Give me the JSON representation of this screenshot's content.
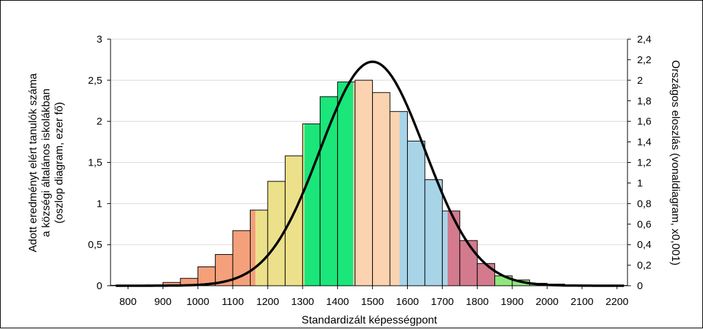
{
  "chart_data": {
    "type": "bar",
    "xlabel": "Standardizált képességpont",
    "ylabel_lines": [
      "Adott eredményt elért tanulók száma",
      "a községi általános iskolákban",
      "(oszlop diagram, ezer fő)"
    ],
    "y2label": "Országos eloszlás (vonaldiagram, x0,001)",
    "xlim": [
      750,
      2230
    ],
    "ylim": [
      0,
      3
    ],
    "y2lim": [
      0,
      2.4
    ],
    "x_ticks": [
      "800",
      "900",
      "1000",
      "1100",
      "1200",
      "1300",
      "1400",
      "1500",
      "1600",
      "1700",
      "1800",
      "1900",
      "2000",
      "2100",
      "2200"
    ],
    "x_tick_values": [
      800,
      900,
      1000,
      1100,
      1200,
      1300,
      1400,
      1500,
      1600,
      1700,
      1800,
      1900,
      2000,
      2100,
      2200
    ],
    "y_ticks": [
      "0",
      "0,5",
      "1",
      "1,5",
      "2",
      "2,5",
      "3"
    ],
    "y_tick_values": [
      0,
      0.5,
      1,
      1.5,
      2,
      2.5,
      3
    ],
    "y2_ticks": [
      "0",
      "0,2",
      "0,4",
      "0,6",
      "0,8",
      "1",
      "1,2",
      "1,4",
      "1,6",
      "1,8",
      "2",
      "2,2",
      "2,4"
    ],
    "y2_tick_values": [
      0,
      0.2,
      0.4,
      0.6,
      0.8,
      1,
      1.2,
      1.4,
      1.6,
      1.8,
      2,
      2.2,
      2.4
    ],
    "grid": true,
    "bar_width": 50,
    "bars": [
      {
        "x": 775,
        "value": 0.005,
        "color": "#f4a07a"
      },
      {
        "x": 825,
        "value": 0.005,
        "color": "#f4a07a"
      },
      {
        "x": 875,
        "value": 0.01,
        "color": "#f4a07a"
      },
      {
        "x": 925,
        "value": 0.04,
        "color": "#f4a07a"
      },
      {
        "x": 975,
        "value": 0.09,
        "color": "#f4a07a"
      },
      {
        "x": 1025,
        "value": 0.23,
        "color": "#f4a07a"
      },
      {
        "x": 1075,
        "value": 0.38,
        "color": "#f4a07a"
      },
      {
        "x": 1125,
        "value": 0.67,
        "color": "#f4a07a"
      },
      {
        "x": 1175,
        "value": 0.92,
        "color": "#f4a07a",
        "color2": "#ece08a",
        "split": 0.3
      },
      {
        "x": 1225,
        "value": 1.27,
        "color": "#ece08a"
      },
      {
        "x": 1275,
        "value": 1.58,
        "color": "#ece08a"
      },
      {
        "x": 1325,
        "value": 1.97,
        "color": "#ece08a",
        "color2": "#1ae67a",
        "split": 0.1
      },
      {
        "x": 1375,
        "value": 2.3,
        "color": "#1ae67a"
      },
      {
        "x": 1425,
        "value": 2.48,
        "color": "#1ae67a",
        "color2": "#fcd3b0",
        "split": 0.9
      },
      {
        "x": 1475,
        "value": 2.5,
        "color": "#fcd3b0"
      },
      {
        "x": 1525,
        "value": 2.35,
        "color": "#fcd3b0"
      },
      {
        "x": 1575,
        "value": 2.12,
        "color": "#fcd3b0",
        "color2": "#a8d4e8",
        "split": 0.55
      },
      {
        "x": 1625,
        "value": 1.76,
        "color": "#a8d4e8"
      },
      {
        "x": 1675,
        "value": 1.29,
        "color": "#a8d4e8"
      },
      {
        "x": 1725,
        "value": 0.91,
        "color": "#a8d4e8",
        "color2": "#d47a8e",
        "split": 0.3
      },
      {
        "x": 1775,
        "value": 0.55,
        "color": "#d47a8e"
      },
      {
        "x": 1825,
        "value": 0.27,
        "color": "#d47a8e"
      },
      {
        "x": 1875,
        "value": 0.12,
        "color": "#8ee87a"
      },
      {
        "x": 1925,
        "value": 0.07,
        "color": "#8ee87a"
      },
      {
        "x": 1975,
        "value": 0.03,
        "color": "#8ee87a"
      },
      {
        "x": 2025,
        "value": 0.02,
        "color": "#8ee87a"
      },
      {
        "x": 2075,
        "value": 0.01,
        "color": "#8ee87a"
      },
      {
        "x": 2125,
        "value": 0.005,
        "color": "#8ee87a"
      },
      {
        "x": 2175,
        "value": 0.005,
        "color": "#8ee87a"
      },
      {
        "x": 2225,
        "value": 0.003,
        "color": "#8ee87a"
      }
    ],
    "curve": {
      "type": "line",
      "axis": "y2",
      "color": "#000000",
      "peak_x": 1500,
      "peak_y": 2.18,
      "x": [
        800,
        900,
        950,
        1000,
        1050,
        1100,
        1150,
        1200,
        1250,
        1300,
        1350,
        1400,
        1450,
        1500,
        1550,
        1600,
        1650,
        1700,
        1750,
        1800,
        1850,
        1900,
        1950,
        2000,
        2050,
        2100,
        2200
      ],
      "y": [
        0.003,
        0.014,
        0.03,
        0.06,
        0.11,
        0.19,
        0.31,
        0.48,
        0.7,
        0.97,
        1.28,
        1.61,
        1.93,
        2.18,
        2.18,
        1.93,
        1.61,
        1.28,
        0.97,
        0.7,
        0.48,
        0.31,
        0.19,
        0.11,
        0.06,
        0.03,
        0.006
      ]
    }
  }
}
